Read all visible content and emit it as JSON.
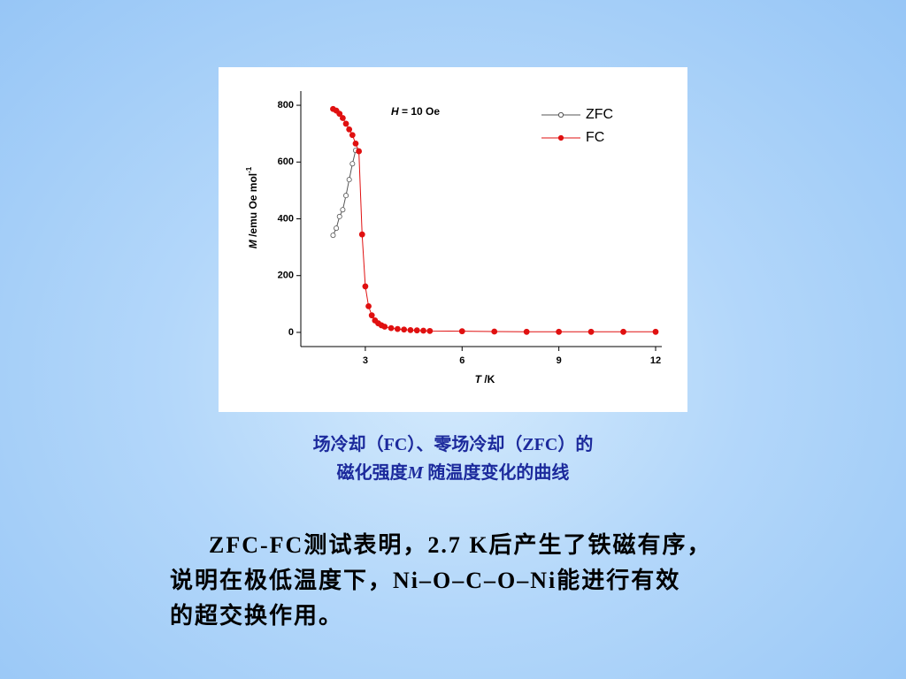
{
  "chart_data": {
    "type": "scatter-line",
    "annotation": [
      "H",
      " = 10 Oe"
    ],
    "xlabel": [
      "T",
      " /K"
    ],
    "ylabel": [
      "M",
      " /emu Oe mol",
      "-1"
    ],
    "xlim": [
      1,
      12
    ],
    "xticks": [
      3,
      6,
      9,
      12
    ],
    "ylim": [
      -50,
      850
    ],
    "yticks": [
      0,
      200,
      400,
      600,
      800
    ],
    "legend": "upper right",
    "series": [
      {
        "name": "ZFC",
        "color": "#555555",
        "marker": "open",
        "x": [
          2.0,
          2.1,
          2.2,
          2.3,
          2.4,
          2.5,
          2.6,
          2.7
        ],
        "values": [
          342,
          367,
          408,
          432,
          482,
          538,
          594,
          641
        ]
      },
      {
        "name": "FC",
        "color": "#e01010",
        "marker": "filled",
        "x": [
          2.0,
          2.1,
          2.2,
          2.3,
          2.4,
          2.5,
          2.6,
          2.7,
          2.8,
          2.9,
          3.0,
          3.1,
          3.2,
          3.3,
          3.4,
          3.5,
          3.6,
          3.8,
          4.0,
          4.2,
          4.4,
          4.6,
          4.8,
          5,
          6,
          7,
          8,
          9,
          10,
          11,
          12
        ],
        "values": [
          787,
          781,
          770,
          755,
          735,
          715,
          695,
          665,
          638,
          345,
          162,
          92,
          60,
          42,
          32,
          25,
          20,
          15,
          12,
          10,
          8,
          7,
          6,
          5,
          4,
          3,
          2,
          2,
          2,
          2,
          2
        ]
      }
    ]
  },
  "caption": [
    "场冷却（FC）、零场冷却（ZFC）的",
    [
      "磁化强度",
      "M",
      " 随温度变化的曲线"
    ]
  ],
  "body": [
    "ZFC-FC测试表明，2.7 K后产生了铁磁有序，",
    "说明在极低温度下，Ni–O–C–O–Ni能进行有效",
    "的超交换作用。"
  ]
}
